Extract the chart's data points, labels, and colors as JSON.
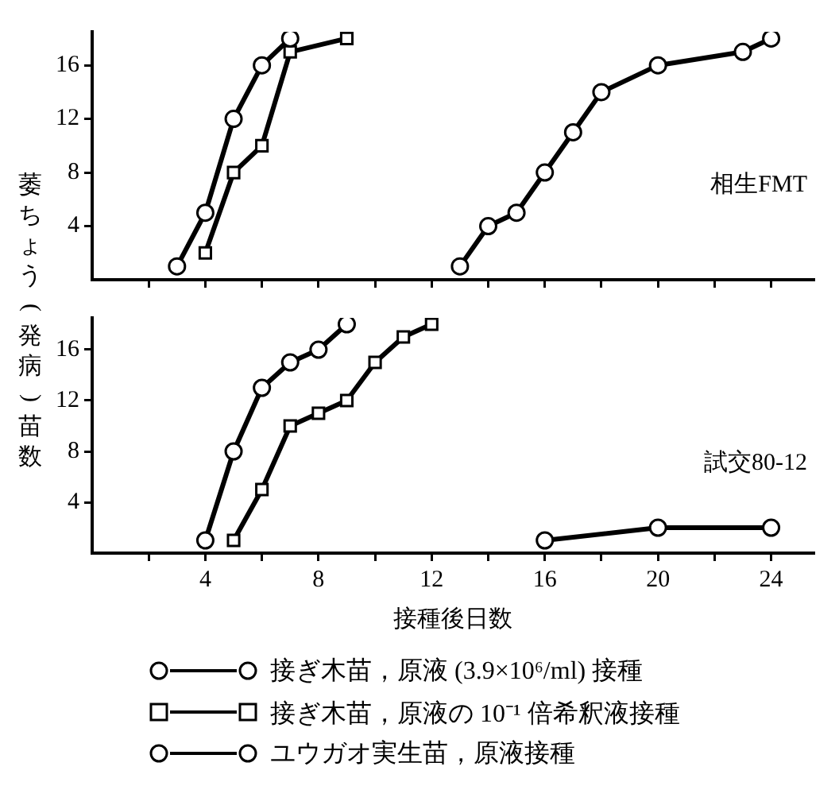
{
  "chart_data": [
    {
      "type": "line",
      "ylabel": "萎ちょう(発病)苗数",
      "annotations": [
        "相生FMT"
      ],
      "xlim": [
        0,
        25.5
      ],
      "ylim": [
        0,
        18.5
      ],
      "xticks": [
        {
          "value": 2,
          "label": null
        },
        {
          "value": 4,
          "label": null
        },
        {
          "value": 6,
          "label": null
        },
        {
          "value": 8,
          "label": null
        },
        {
          "value": 10,
          "label": null
        },
        {
          "value": 12,
          "label": null
        },
        {
          "value": 14,
          "label": null
        },
        {
          "value": 16,
          "label": null
        },
        {
          "value": 18,
          "label": null
        },
        {
          "value": 20,
          "label": null
        },
        {
          "value": 22,
          "label": null
        },
        {
          "value": 24,
          "label": null
        }
      ],
      "yticks": [
        4,
        8,
        12,
        16
      ],
      "tick_labels": "y",
      "grid": false,
      "legend": false,
      "line_style": "solid",
      "series": [
        {
          "color": "#000000",
          "marker": "circle",
          "x": [
            3,
            4,
            5,
            6,
            7
          ],
          "values": [
            1,
            5,
            12,
            16,
            18
          ]
        },
        {
          "color": "#000000",
          "marker": "square",
          "x": [
            4,
            5,
            6,
            7,
            9
          ],
          "values": [
            2,
            8,
            10,
            17,
            18
          ]
        },
        {
          "color": "#000000",
          "marker": "circle",
          "x": [
            13,
            14,
            15,
            16,
            17,
            18,
            20,
            23,
            24
          ],
          "values": [
            1,
            4,
            5,
            8,
            11,
            14,
            16,
            17,
            18
          ]
        }
      ]
    },
    {
      "type": "line",
      "xlabel": "接種後日数",
      "annotations": [
        "試交80-12"
      ],
      "xlim": [
        0,
        25.5
      ],
      "ylim": [
        0,
        18.5
      ],
      "xticks": [
        {
          "value": 2,
          "label": null
        },
        4,
        {
          "value": 6,
          "label": null
        },
        8,
        {
          "value": 10,
          "label": null
        },
        12,
        {
          "value": 14,
          "label": null
        },
        16,
        {
          "value": 18,
          "label": null
        },
        20,
        {
          "value": 22,
          "label": null
        },
        24
      ],
      "yticks": [
        4,
        8,
        12,
        16
      ],
      "grid": false,
      "legend": "bottom",
      "line_style": "solid",
      "series": [
        {
          "name": "接ぎ木苗，原液 (3.9×10⁶/ml) 接種",
          "color": "#000000",
          "marker": "circle",
          "x": [
            4,
            5,
            6,
            7,
            8,
            9
          ],
          "values": [
            1,
            8,
            13,
            15,
            16,
            18
          ]
        },
        {
          "name": "接ぎ木苗，原液の 10⁻¹ 倍希釈液接種",
          "color": "#000000",
          "marker": "square",
          "x": [
            5,
            6,
            7,
            8,
            9,
            10,
            11,
            12
          ],
          "values": [
            1,
            5,
            10,
            11,
            12,
            15,
            17,
            18
          ]
        },
        {
          "name": "ユウガオ実生苗，原液接種",
          "color": "#000000",
          "marker": "circle",
          "x": [
            16,
            20,
            24
          ],
          "values": [
            1,
            2,
            2
          ]
        }
      ]
    }
  ]
}
